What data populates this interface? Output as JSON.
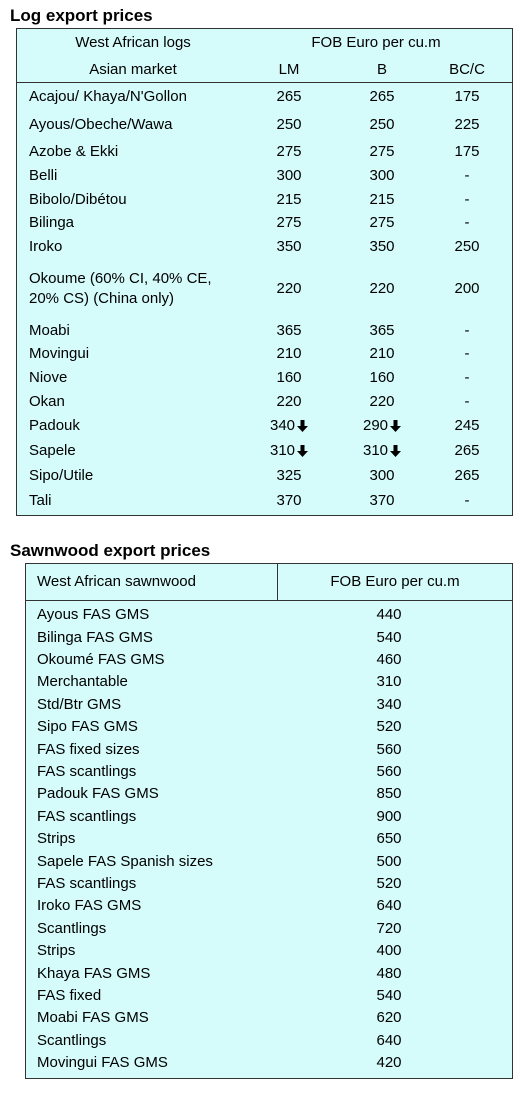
{
  "log_table": {
    "title": "Log export prices",
    "header": {
      "first_top": "West African logs",
      "group": "FOB Euro per cu.m",
      "first_bottom": "Asian market",
      "columns": [
        "LM",
        "B",
        "BC/C"
      ]
    },
    "rows": [
      [
        "Acajou/ Khaya/N'Gollon",
        265,
        265,
        175
      ],
      [
        "Ayous/Obeche/Wawa",
        250,
        250,
        225
      ],
      [
        "Azobe & Ekki",
        275,
        275,
        175
      ],
      [
        "Belli",
        300,
        300,
        "-"
      ],
      [
        "Bibolo/Dibétou",
        215,
        215,
        "-"
      ],
      [
        "Bilinga",
        275,
        275,
        "-"
      ],
      [
        "Iroko",
        350,
        350,
        250
      ],
      [
        "Okoume (60% CI, 40% CE, 20% CS) (China only)",
        220,
        220,
        200
      ],
      [
        "Moabi",
        365,
        365,
        "-"
      ],
      [
        "Movingui",
        210,
        210,
        "-"
      ],
      [
        "Niove",
        160,
        160,
        "-"
      ],
      [
        "Okan",
        220,
        220,
        "-"
      ],
      [
        "Padouk",
        340,
        290,
        245
      ],
      [
        "Sapele",
        310,
        310,
        265
      ],
      [
        "Sipo/Utile",
        325,
        300,
        265
      ],
      [
        "Tali",
        370,
        370,
        "-"
      ]
    ]
  },
  "sawn_table": {
    "title": "Sawnwood export prices",
    "header": [
      "West African sawnwood",
      "FOB Euro per cu.m"
    ],
    "rows": [
      [
        "Ayous FAS GMS",
        440
      ],
      [
        "Bilinga FAS GMS",
        540
      ],
      [
        "Okoumé FAS GMS",
        460
      ],
      [
        "Merchantable",
        310
      ],
      [
        "Std/Btr GMS",
        340
      ],
      [
        "Sipo FAS GMS",
        520
      ],
      [
        "FAS fixed sizes",
        560
      ],
      [
        "FAS scantlings",
        560
      ],
      [
        "Padouk FAS GMS",
        850
      ],
      [
        "FAS scantlings",
        900
      ],
      [
        "Strips",
        650
      ],
      [
        "Sapele FAS Spanish sizes",
        500
      ],
      [
        "FAS scantlings",
        520
      ],
      [
        "Iroko FAS GMS",
        640
      ],
      [
        "Scantlings",
        720
      ],
      [
        "Strips",
        400
      ],
      [
        "Khaya FAS GMS",
        480
      ],
      [
        "FAS fixed",
        540
      ],
      [
        "Moabi FAS GMS",
        620
      ],
      [
        "Scantlings",
        640
      ],
      [
        "Movingui FAS GMS",
        420
      ]
    ]
  }
}
